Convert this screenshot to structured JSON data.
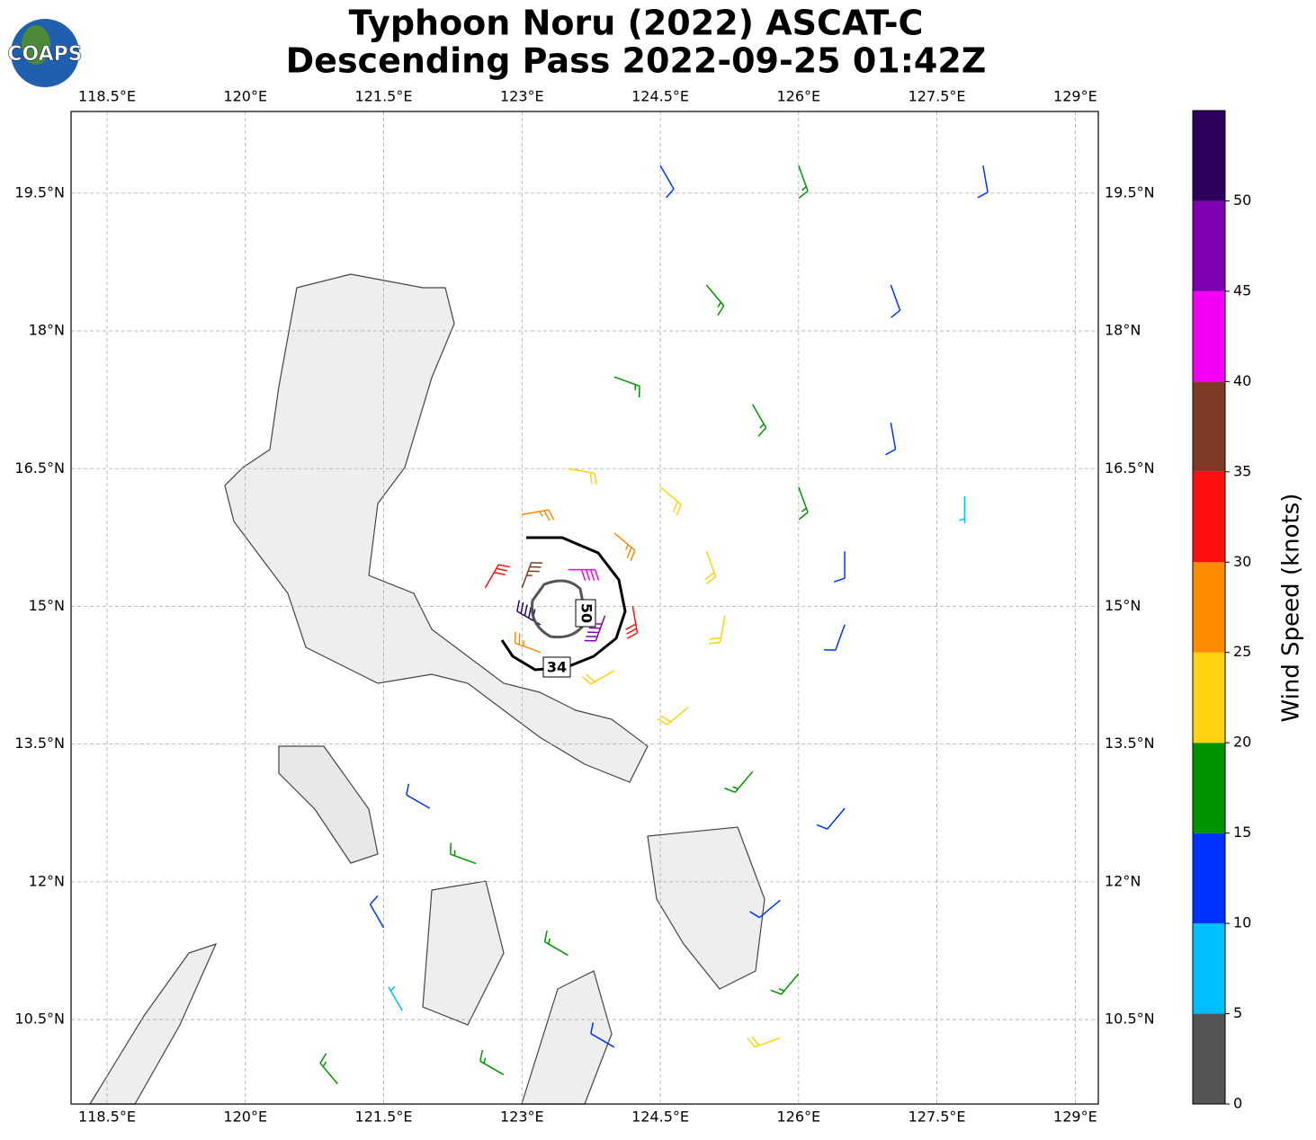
{
  "chart_data": {
    "type": "wind-barb-map",
    "title": "Typhoon Noru (2022) ASCAT-C",
    "subtitle": "Descending Pass 2022-09-25 01:42Z",
    "logo_text": "COAPS",
    "xlim": [
      118.11,
      129.25
    ],
    "ylim": [
      9.58,
      20.39
    ],
    "xticks": [
      {
        "value": 118.5,
        "label": "118.5°E"
      },
      {
        "value": 120,
        "label": "120°E"
      },
      {
        "value": 121.5,
        "label": "121.5°E"
      },
      {
        "value": 123,
        "label": "123°E"
      },
      {
        "value": 124.5,
        "label": "124.5°E"
      },
      {
        "value": 126,
        "label": "126°E"
      },
      {
        "value": 127.5,
        "label": "127.5°E"
      },
      {
        "value": 129,
        "label": "129°E"
      }
    ],
    "yticks": [
      {
        "value": 10.5,
        "label": "10.5°N"
      },
      {
        "value": 12,
        "label": "12°N"
      },
      {
        "value": 13.5,
        "label": "13.5°N"
      },
      {
        "value": 15,
        "label": "15°N"
      },
      {
        "value": 16.5,
        "label": "16.5°N"
      },
      {
        "value": 18,
        "label": "18°N"
      },
      {
        "value": 19.5,
        "label": "19.5°N"
      }
    ],
    "grid": true,
    "colorbar": {
      "label": "Wind Speed (knots)",
      "lim": [
        0,
        55
      ],
      "ticks": [
        0,
        5,
        10,
        15,
        20,
        25,
        30,
        35,
        40,
        45,
        50
      ],
      "bounds": [
        0,
        5,
        10,
        15,
        20,
        25,
        30,
        35,
        40,
        45,
        50,
        55
      ],
      "colors": [
        "#555555",
        "#00bfff",
        "#0033ff",
        "#009400",
        "#ffd20f",
        "#ff8c00",
        "#ff1010",
        "#7f3b25",
        "#f500f5",
        "#8000b4",
        "#2e005e"
      ]
    },
    "contours": [
      {
        "level": 34,
        "color": "#000000"
      },
      {
        "level": 50,
        "color": "#555555"
      }
    ],
    "barbs": {
      "lon": [
        124.5,
        126,
        128,
        125,
        127,
        124,
        125.5,
        127,
        123.5,
        124.5,
        126,
        127.8,
        123,
        124,
        125,
        126.5,
        122.6,
        124.2,
        125.2,
        126.5,
        123.5,
        123.9,
        123.2,
        123,
        123.2,
        124,
        124.8,
        125.5,
        126.5,
        125.8,
        126,
        122,
        122.5,
        121.5,
        121.7,
        123.5,
        124,
        122.8,
        121,
        125.8
      ],
      "lat": [
        19.8,
        19.8,
        19.8,
        18.5,
        18.5,
        17.5,
        17.2,
        17,
        16.5,
        16.3,
        16.3,
        16.2,
        16,
        15.8,
        15.6,
        15.6,
        15.2,
        15,
        14.9,
        14.8,
        15.4,
        14.9,
        14.8,
        15.2,
        14.5,
        14.3,
        13.9,
        13.2,
        12.8,
        11.8,
        11,
        12.8,
        12.2,
        11.5,
        10.6,
        11.2,
        10.2,
        9.9,
        9.8,
        10.3
      ],
      "speed": [
        12,
        17,
        12,
        17,
        12,
        17,
        17,
        12,
        22,
        22,
        17,
        8,
        27,
        27,
        22,
        12,
        32,
        32,
        22,
        12,
        42,
        47,
        52,
        37,
        27,
        22,
        22,
        17,
        12,
        12,
        17,
        12,
        17,
        12,
        8,
        17,
        12,
        17,
        17,
        22
      ],
      "direction": [
        150,
        160,
        170,
        140,
        160,
        110,
        150,
        170,
        100,
        130,
        160,
        180,
        80,
        130,
        160,
        180,
        30,
        170,
        190,
        200,
        90,
        200,
        300,
        20,
        290,
        240,
        230,
        220,
        220,
        230,
        220,
        300,
        290,
        330,
        330,
        300,
        300,
        300,
        320,
        250
      ]
    }
  }
}
